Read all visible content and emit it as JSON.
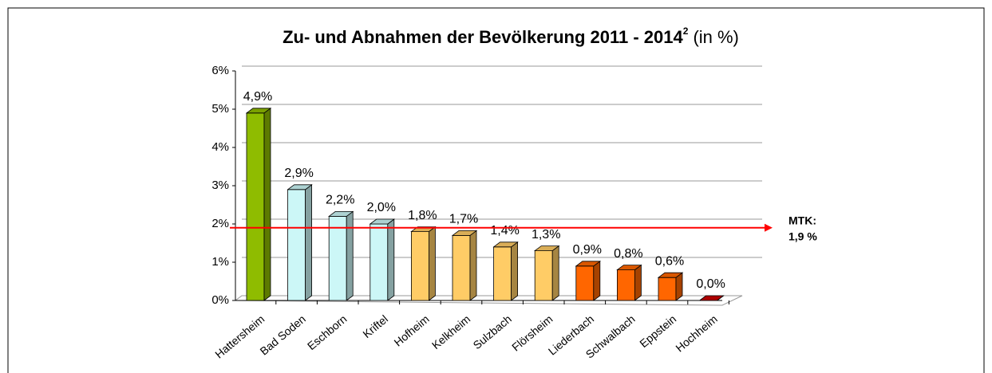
{
  "chart_data": {
    "type": "bar",
    "title": "Zu- und Abnahmen der Bevölkerung 2011 - 2014",
    "title_superscript": "2",
    "title_suffix": "(in %)",
    "categories": [
      "Hattersheim",
      "Bad Soden",
      "Eschborn",
      "Kriftel",
      "Hofheim",
      "Kelkheim",
      "Sulzbach",
      "Flörsheim",
      "Liederbach",
      "Schwalbach",
      "Eppstein",
      "Hochheim"
    ],
    "values": [
      4.9,
      2.9,
      2.2,
      2.0,
      1.8,
      1.7,
      1.4,
      1.3,
      0.9,
      0.8,
      0.6,
      0.0
    ],
    "value_labels": [
      "4,9%",
      "2,9%",
      "2,2%",
      "2,0%",
      "1,8%",
      "1,7%",
      "1,4%",
      "1,3%",
      "0,9%",
      "0,8%",
      "0,6%",
      "0,0%"
    ],
    "colors": [
      "#8fbc00",
      "#ccf7f7",
      "#ccf7f7",
      "#ccf7f7",
      "#ffcc66",
      "#ffcc66",
      "#ffcc66",
      "#ffcc66",
      "#ff6600",
      "#ff6600",
      "#ff6600",
      "#cc0000"
    ],
    "ylim": [
      0,
      6
    ],
    "yticks": [
      {
        "value": 0,
        "label": "0%"
      },
      {
        "value": 1,
        "label": "1%"
      },
      {
        "value": 2,
        "label": "2%"
      },
      {
        "value": 3,
        "label": "3%"
      },
      {
        "value": 4,
        "label": "4%"
      },
      {
        "value": 5,
        "label": "5%"
      },
      {
        "value": 6,
        "label": "6%"
      }
    ],
    "grid": true,
    "reference_line": {
      "value": 1.9,
      "name": "MTK:",
      "label": "1,9 %",
      "color": "#ff0000"
    }
  }
}
